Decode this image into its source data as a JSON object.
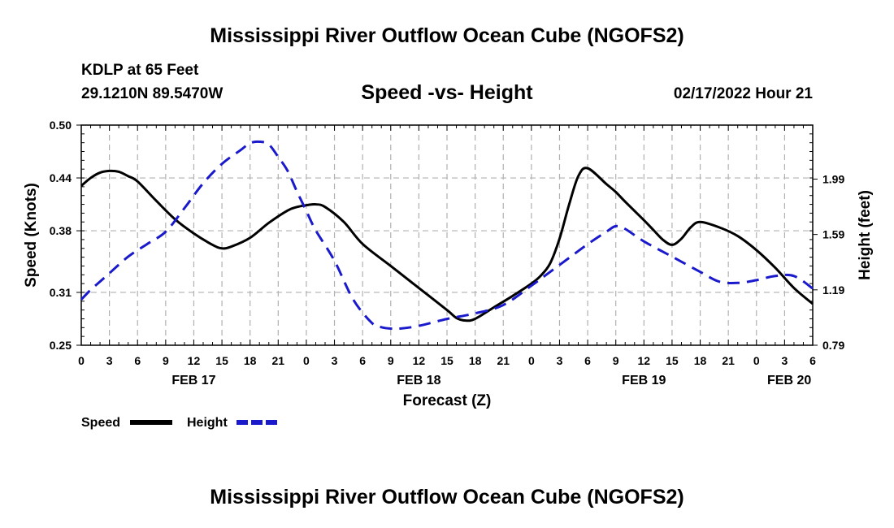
{
  "header": {
    "title": "Mississippi River Outflow Ocean Cube (NGOFS2)",
    "station": "KDLP at 65 Feet",
    "coords": "29.1210N  89.5470W",
    "subtitle": "Speed -vs- Height",
    "timestamp": "02/17/2022 Hour 21"
  },
  "footer": {
    "title": "Mississippi River Outflow Ocean Cube (NGOFS2)"
  },
  "colors": {
    "speed": "#000000",
    "height": "#1a1acc",
    "grid": "#b0b0b0"
  },
  "chart_data": {
    "type": "line",
    "title": "Speed -vs- Height",
    "xlabel": "Forecast (Z)",
    "ylabel_left": "Speed (Knots)",
    "ylabel_right": "Height (feet)",
    "x_unit": "hours from FEB 17 00Z",
    "xlim": [
      0,
      78
    ],
    "x_ticks": [
      0,
      3,
      6,
      9,
      12,
      15,
      18,
      21,
      24,
      27,
      30,
      33,
      36,
      39,
      42,
      45,
      48,
      51,
      54,
      57,
      60,
      63,
      66,
      69,
      72,
      75,
      78
    ],
    "x_tick_labels": [
      "0",
      "3",
      "6",
      "9",
      "12",
      "15",
      "18",
      "21",
      "0",
      "3",
      "6",
      "9",
      "12",
      "15",
      "18",
      "21",
      "0",
      "3",
      "6",
      "9",
      "12",
      "15",
      "18",
      "21",
      "0",
      "3",
      "6"
    ],
    "date_labels": [
      {
        "x": 12,
        "label": "FEB 17"
      },
      {
        "x": 36,
        "label": "FEB 18"
      },
      {
        "x": 60,
        "label": "FEB 19"
      },
      {
        "x": 75.5,
        "label": "FEB 20"
      }
    ],
    "y_left": {
      "range": [
        0.25,
        0.5
      ],
      "ticks": [
        0.25,
        0.31,
        0.38,
        0.44,
        0.5
      ],
      "tick_labels": [
        "0.25",
        "0.31",
        "0.38",
        "0.44",
        "0.50"
      ]
    },
    "y_right": {
      "range": [
        0.79,
        2.38
      ],
      "ticks": [
        0.79,
        1.19,
        1.59,
        1.99
      ],
      "tick_labels": [
        "0.79",
        "1.19",
        "1.59",
        "1.99"
      ]
    },
    "grid": true,
    "legend_position": "bottom-left",
    "series": [
      {
        "name": "Speed",
        "axis": "left",
        "style": "solid",
        "x": [
          0,
          1,
          2,
          3,
          4,
          5,
          6,
          8,
          10,
          12,
          14,
          15,
          16,
          18,
          20,
          22,
          23,
          24,
          25,
          26,
          28,
          30,
          33,
          36,
          39,
          40,
          41,
          42,
          44,
          46,
          48,
          49,
          50,
          51,
          52,
          53,
          54,
          56,
          57,
          58,
          60,
          61,
          62,
          63,
          64,
          65,
          66,
          68,
          70,
          72,
          74,
          76,
          78
        ],
        "values": [
          0.431,
          0.44,
          0.446,
          0.448,
          0.447,
          0.442,
          0.436,
          0.414,
          0.393,
          0.377,
          0.364,
          0.36,
          0.362,
          0.372,
          0.389,
          0.403,
          0.407,
          0.409,
          0.41,
          0.407,
          0.39,
          0.365,
          0.34,
          0.315,
          0.29,
          0.281,
          0.278,
          0.28,
          0.293,
          0.306,
          0.32,
          0.329,
          0.343,
          0.371,
          0.409,
          0.442,
          0.451,
          0.433,
          0.424,
          0.413,
          0.392,
          0.381,
          0.37,
          0.364,
          0.371,
          0.384,
          0.39,
          0.384,
          0.374,
          0.358,
          0.338,
          0.315,
          0.297
        ]
      },
      {
        "name": "Height",
        "axis": "right",
        "style": "dashed",
        "x": [
          0,
          1,
          2,
          3,
          5,
          7,
          9,
          11,
          13,
          15,
          17,
          18,
          19,
          20,
          21,
          22,
          23,
          24,
          25,
          27,
          29,
          31,
          32,
          33,
          34,
          36,
          39,
          42,
          45,
          48,
          50,
          52,
          54,
          56,
          57,
          58,
          60,
          63,
          66,
          68,
          70,
          72,
          74,
          76,
          78
        ],
        "values": [
          1.12,
          1.19,
          1.25,
          1.31,
          1.43,
          1.52,
          1.61,
          1.78,
          1.96,
          2.1,
          2.2,
          2.25,
          2.26,
          2.24,
          2.15,
          2.05,
          1.9,
          1.76,
          1.62,
          1.4,
          1.12,
          0.95,
          0.92,
          0.91,
          0.91,
          0.93,
          0.98,
          1.02,
          1.08,
          1.22,
          1.32,
          1.42,
          1.52,
          1.61,
          1.65,
          1.63,
          1.54,
          1.43,
          1.32,
          1.25,
          1.24,
          1.26,
          1.29,
          1.29,
          1.2
        ]
      }
    ]
  }
}
